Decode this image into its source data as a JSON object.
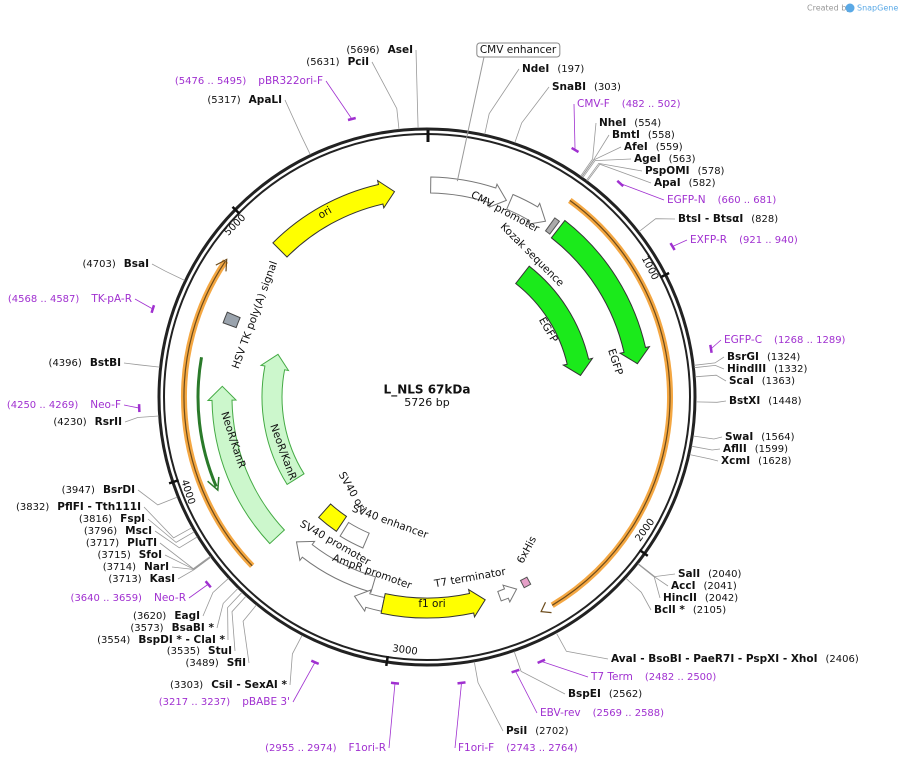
{
  "header": {
    "created_by": "Created by",
    "brand": "SnapGene"
  },
  "plasmid": {
    "name": "L_NLS 67kDa",
    "size": 5726,
    "size_label": "5726 bp",
    "ring_ticks": [
      1000,
      2000,
      3000,
      4000,
      5000
    ]
  },
  "features": [
    "CMV enhancer",
    "CMV promoter",
    "Kozak sequence",
    "EGFP",
    "EGFP",
    "ori",
    "HSV TK poly(A) signal",
    "NeoR/KanR",
    "NeoR/KanR",
    "SV40 ori",
    "SV40 enhancer",
    "SV40 promoter",
    "AmpR promoter",
    "f1 ori",
    "T7 terminator",
    "6xHis"
  ],
  "enzymes": [
    {
      "name": "NdeI",
      "site": 197,
      "label": "(197)"
    },
    {
      "name": "SnaBI",
      "site": 303,
      "label": "(303)"
    },
    {
      "name": "NheI",
      "site": 554,
      "label": "(554)"
    },
    {
      "name": "BmtI",
      "site": 558,
      "label": "(558)"
    },
    {
      "name": "AfeI",
      "site": 559,
      "label": "(559)"
    },
    {
      "name": "AgeI",
      "site": 563,
      "label": "(563)"
    },
    {
      "name": "PspOMI",
      "site": 578,
      "label": "(578)"
    },
    {
      "name": "ApaI",
      "site": 582,
      "label": "(582)"
    },
    {
      "name": "BtsI - BtsαI",
      "site": 828,
      "label": "(828)"
    },
    {
      "name": "BsrGI",
      "site": 1324,
      "label": "(1324)"
    },
    {
      "name": "HindIII",
      "site": 1332,
      "label": "(1332)"
    },
    {
      "name": "ScaI",
      "site": 1363,
      "label": "(1363)"
    },
    {
      "name": "BstXI",
      "site": 1448,
      "label": "(1448)"
    },
    {
      "name": "SwaI",
      "site": 1564,
      "label": "(1564)"
    },
    {
      "name": "AflII",
      "site": 1599,
      "label": "(1599)"
    },
    {
      "name": "XcmI",
      "site": 1628,
      "label": "(1628)"
    },
    {
      "name": "SalI",
      "site": 2040,
      "label": "(2040)"
    },
    {
      "name": "AccI",
      "site": 2041,
      "label": "(2041)"
    },
    {
      "name": "HincII",
      "site": 2042,
      "label": "(2042)"
    },
    {
      "name": "BclI *",
      "site": 2105,
      "label": "(2105)"
    },
    {
      "name": "AvaI - BsoBI - PaeR7I - PspXI - XhoI",
      "site": 2406,
      "label": "(2406)"
    },
    {
      "name": "BspEI",
      "site": 2562,
      "label": "(2562)"
    },
    {
      "name": "PsiI",
      "site": 2702,
      "label": "(2702)"
    },
    {
      "name": "CsiI - SexAI *",
      "site": 3303,
      "label": "(3303)"
    },
    {
      "name": "SfiI",
      "site": 3489,
      "label": "(3489)"
    },
    {
      "name": "StuI",
      "site": 3535,
      "label": "(3535)"
    },
    {
      "name": "BspDI * - ClaI *",
      "site": 3554,
      "label": "(3554)"
    },
    {
      "name": "BsaBI *",
      "site": 3573,
      "label": "(3573)"
    },
    {
      "name": "EagI",
      "site": 3620,
      "label": "(3620)"
    },
    {
      "name": "KasI",
      "site": 3713,
      "label": "(3713)"
    },
    {
      "name": "NarI",
      "site": 3714,
      "label": "(3714)"
    },
    {
      "name": "SfoI",
      "site": 3715,
      "label": "(3715)"
    },
    {
      "name": "PluTI",
      "site": 3717,
      "label": "(3717)"
    },
    {
      "name": "MscI",
      "site": 3796,
      "label": "(3796)"
    },
    {
      "name": "FspI",
      "site": 3816,
      "label": "(3816)"
    },
    {
      "name": "PflFI - Tth111I",
      "site": 3832,
      "label": "(3832)"
    },
    {
      "name": "BsrDI",
      "site": 3947,
      "label": "(3947)"
    },
    {
      "name": "RsrII",
      "site": 4230,
      "label": "(4230)"
    },
    {
      "name": "BstBI",
      "site": 4396,
      "label": "(4396)"
    },
    {
      "name": "BsaI",
      "site": 4703,
      "label": "(4703)"
    },
    {
      "name": "ApaLI",
      "site": 5317,
      "label": "(5317)"
    },
    {
      "name": "PciI",
      "site": 5631,
      "label": "(5631)"
    },
    {
      "name": "AseI",
      "site": 5696,
      "label": "(5696)"
    }
  ],
  "primers": [
    {
      "name": "CMV-F",
      "start": 482,
      "end": 502,
      "label": "(482 .. 502)"
    },
    {
      "name": "EGFP-N",
      "start": 660,
      "end": 681,
      "label": "(660 .. 681)"
    },
    {
      "name": "EXFP-R",
      "start": 921,
      "end": 940,
      "label": "(921 .. 940)"
    },
    {
      "name": "EGFP-C",
      "start": 1268,
      "end": 1289,
      "label": "(1268 .. 1289)"
    },
    {
      "name": "T7 Term",
      "start": 2482,
      "end": 2500,
      "label": "(2482 .. 2500)"
    },
    {
      "name": "EBV-rev",
      "start": 2569,
      "end": 2588,
      "label": "(2569 .. 2588)"
    },
    {
      "name": "F1ori-F",
      "start": 2743,
      "end": 2764,
      "label": "(2743 .. 2764)"
    },
    {
      "name": "F1ori-R",
      "start": 2955,
      "end": 2974,
      "label": "(2955 .. 2974)"
    },
    {
      "name": "pBABE 3'",
      "start": 3217,
      "end": 3237,
      "label": "(3217 .. 3237)"
    },
    {
      "name": "Neo-R",
      "start": 3640,
      "end": 3659,
      "label": "(3640 .. 3659)"
    },
    {
      "name": "Neo-F",
      "start": 4250,
      "end": 4269,
      "label": "(4250 .. 4269)"
    },
    {
      "name": "TK-pA-R",
      "start": 4568,
      "end": 4587,
      "label": "(4568 .. 4587)"
    },
    {
      "name": "pBR322ori-F",
      "start": 5476,
      "end": 5495,
      "label": "(5476 .. 5495)"
    }
  ]
}
